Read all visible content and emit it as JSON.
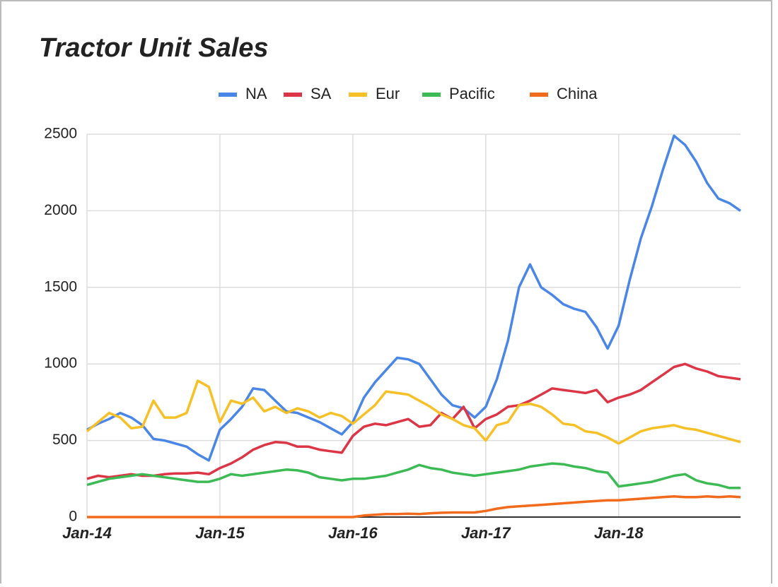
{
  "chart_data": {
    "type": "line",
    "title": "Tractor Unit Sales",
    "legend": "top",
    "grid": true,
    "categories": [
      "Jan-14",
      null,
      null,
      null,
      null,
      null,
      null,
      null,
      null,
      null,
      null,
      null,
      "Jan-15",
      null,
      null,
      null,
      null,
      null,
      null,
      null,
      null,
      null,
      null,
      null,
      "Jan-16",
      null,
      null,
      null,
      null,
      null,
      null,
      null,
      null,
      null,
      null,
      null,
      "Jan-17",
      null,
      null,
      null,
      null,
      null,
      null,
      null,
      null,
      null,
      null,
      null,
      "Jan-18",
      null,
      null,
      null,
      null,
      null,
      null,
      null,
      null,
      null,
      null,
      null
    ],
    "ylim": [
      0,
      2500
    ],
    "yticks": [
      0,
      500,
      1000,
      1500,
      2000,
      2500
    ],
    "series": [
      {
        "name": "NA",
        "color": "#4a86e8",
        "values": [
          570,
          610,
          640,
          680,
          650,
          600,
          510,
          500,
          480,
          460,
          410,
          370,
          570,
          640,
          720,
          840,
          830,
          760,
          690,
          680,
          650,
          620,
          580,
          540,
          620,
          780,
          880,
          960,
          1040,
          1030,
          1000,
          900,
          800,
          730,
          710,
          650,
          720,
          900,
          1150,
          1500,
          1650,
          1500,
          1450,
          1390,
          1360,
          1340,
          1240,
          1100,
          1250,
          1550,
          1820,
          2030,
          2270,
          2490,
          2430,
          2320,
          2180,
          2080,
          2050,
          2000
        ]
      },
      {
        "name": "SA",
        "color": "#dc3545",
        "values": [
          250,
          270,
          260,
          270,
          280,
          270,
          270,
          280,
          285,
          285,
          290,
          280,
          320,
          350,
          390,
          440,
          470,
          490,
          485,
          460,
          460,
          440,
          430,
          420,
          530,
          590,
          610,
          600,
          620,
          640,
          590,
          600,
          680,
          640,
          720,
          580,
          640,
          670,
          720,
          730,
          760,
          800,
          840,
          830,
          820,
          810,
          830,
          750,
          780,
          800,
          830,
          880,
          930,
          980,
          1000,
          970,
          950,
          920,
          910,
          900
        ]
      },
      {
        "name": "Eur",
        "color": "#f6c026",
        "values": [
          560,
          620,
          680,
          650,
          580,
          590,
          760,
          650,
          650,
          680,
          890,
          850,
          620,
          760,
          740,
          780,
          690,
          720,
          680,
          710,
          690,
          650,
          680,
          660,
          610,
          670,
          730,
          820,
          810,
          800,
          760,
          720,
          670,
          640,
          600,
          580,
          500,
          600,
          620,
          730,
          740,
          720,
          670,
          610,
          600,
          560,
          550,
          520,
          480,
          520,
          560,
          580,
          590,
          600,
          580,
          570,
          550,
          530,
          510,
          490
        ]
      },
      {
        "name": "Pacific",
        "color": "#3cba54",
        "values": [
          210,
          230,
          250,
          260,
          270,
          280,
          270,
          260,
          250,
          240,
          230,
          230,
          250,
          280,
          270,
          280,
          290,
          300,
          310,
          305,
          290,
          260,
          250,
          240,
          250,
          250,
          260,
          270,
          290,
          310,
          340,
          320,
          310,
          290,
          280,
          270,
          280,
          290,
          300,
          310,
          330,
          340,
          350,
          345,
          330,
          320,
          300,
          290,
          200,
          210,
          220,
          230,
          250,
          270,
          280,
          240,
          220,
          210,
          190,
          190
        ]
      },
      {
        "name": "China",
        "color": "#f26b1d",
        "values": [
          0,
          0,
          0,
          0,
          0,
          0,
          0,
          0,
          0,
          0,
          0,
          0,
          0,
          0,
          0,
          0,
          0,
          0,
          0,
          0,
          0,
          0,
          0,
          0,
          0,
          10,
          15,
          20,
          20,
          22,
          20,
          25,
          28,
          30,
          30,
          30,
          40,
          55,
          65,
          70,
          75,
          80,
          85,
          90,
          95,
          100,
          105,
          110,
          110,
          115,
          120,
          125,
          130,
          135,
          130,
          130,
          135,
          130,
          135,
          130
        ]
      }
    ]
  }
}
